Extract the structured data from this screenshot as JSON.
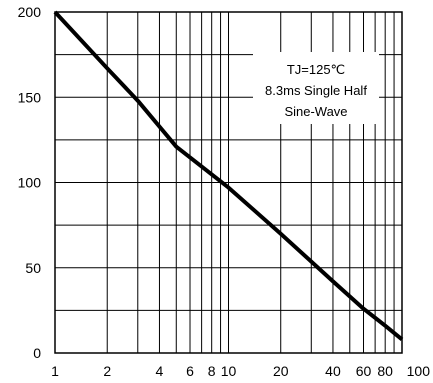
{
  "chart_data": {
    "type": "line",
    "x_scale": "log",
    "grid": true,
    "xlim": [
      1,
      100
    ],
    "ylim": [
      0,
      200
    ],
    "x_ticks": [
      {
        "value": 1,
        "label": "1"
      },
      {
        "value": 2,
        "label": "2"
      },
      {
        "value": 4,
        "label": "4"
      },
      {
        "value": 6,
        "label": "6"
      },
      {
        "value": 8,
        "label": "8"
      },
      {
        "value": 10,
        "label": "10"
      },
      {
        "value": 20,
        "label": "20"
      },
      {
        "value": 40,
        "label": "40"
      },
      {
        "value": 60,
        "label": "60"
      },
      {
        "value": 80,
        "label": "80"
      },
      {
        "value": 100,
        "label": "100"
      }
    ],
    "y_ticks": [
      {
        "value": 0,
        "label": "0"
      },
      {
        "value": 50,
        "label": "50"
      },
      {
        "value": 100,
        "label": "100"
      },
      {
        "value": 150,
        "label": "150"
      },
      {
        "value": 200,
        "label": "200"
      }
    ],
    "x_gridlines": [
      1,
      2,
      3,
      4,
      5,
      6,
      7,
      8,
      9,
      10,
      20,
      30,
      40,
      50,
      60,
      70,
      80,
      90,
      100
    ],
    "y_gridlines": [
      0,
      25,
      50,
      75,
      100,
      125,
      150,
      175,
      200
    ],
    "series": [
      {
        "color": "#000000",
        "points": [
          {
            "x": 1,
            "y": 200
          },
          {
            "x": 2,
            "y": 167
          },
          {
            "x": 3,
            "y": 148
          },
          {
            "x": 5,
            "y": 121
          },
          {
            "x": 10,
            "y": 97
          },
          {
            "x": 20,
            "y": 70
          },
          {
            "x": 40,
            "y": 42
          },
          {
            "x": 60,
            "y": 26
          },
          {
            "x": 80,
            "y": 16
          },
          {
            "x": 100,
            "y": 8
          }
        ]
      }
    ],
    "annotation": {
      "lines": [
        "TJ=125℃",
        "8.3ms Single Half",
        "Sine-Wave"
      ],
      "placement": "top-right"
    }
  }
}
